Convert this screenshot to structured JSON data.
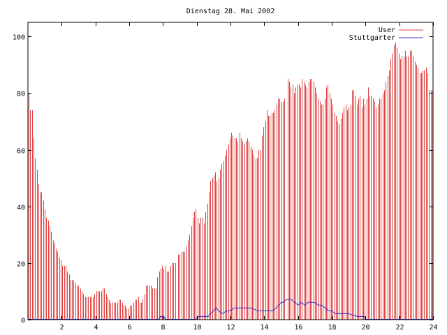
{
  "chart_data": {
    "type": "bar",
    "title": "Dienstag 28. Mai 2002",
    "xlabel": "",
    "ylabel": "",
    "xlim": [
      0,
      24
    ],
    "ylim": [
      0,
      105
    ],
    "xticks": [
      2,
      4,
      6,
      8,
      10,
      12,
      14,
      16,
      18,
      20,
      22,
      24
    ],
    "yticks": [
      0,
      20,
      40,
      60,
      80,
      100
    ],
    "legend_position": "top-right",
    "grid": false,
    "colors": {
      "User": "#e04040",
      "Stuttgarter": "#3030c8",
      "axis": "#000000"
    },
    "bar_interval_hours": 0.0833,
    "series": [
      {
        "name": "User",
        "type": "bar",
        "values": [
          80,
          74,
          74,
          64,
          57,
          53,
          48,
          45,
          45,
          42,
          39,
          36,
          35,
          33,
          31,
          28,
          27,
          25,
          24,
          22,
          21,
          19,
          19,
          19,
          17,
          16,
          14,
          14,
          14,
          13,
          12,
          12,
          11,
          10,
          9,
          8,
          8,
          8,
          8,
          8,
          8,
          9,
          10,
          10,
          10,
          10,
          11,
          11,
          9,
          8,
          7,
          6,
          6,
          6,
          6,
          6,
          7,
          7,
          6,
          5,
          5,
          4,
          4,
          5,
          5,
          6,
          7,
          7,
          8,
          6,
          6,
          7,
          9,
          12,
          12,
          12,
          12,
          11,
          11,
          11,
          15,
          17,
          18,
          19,
          18,
          19,
          17,
          17,
          19,
          20,
          20,
          20,
          0,
          23,
          23,
          24,
          24,
          24,
          26,
          28,
          30,
          33,
          36,
          38,
          39,
          36,
          34,
          36,
          36,
          34,
          38,
          41,
          45,
          49,
          50,
          51,
          52,
          49,
          50,
          53,
          55,
          56,
          58,
          60,
          62,
          64,
          66,
          65,
          64,
          64,
          63,
          66,
          64,
          63,
          62,
          63,
          64,
          63,
          61,
          60,
          58,
          57,
          57,
          60,
          60,
          65,
          68,
          70,
          74,
          72,
          72,
          73,
          73,
          74,
          76,
          78,
          78,
          77,
          77,
          78,
          0,
          85,
          84,
          82,
          83,
          80,
          82,
          83,
          83,
          82,
          85,
          84,
          83,
          82,
          84,
          85,
          85,
          84,
          82,
          80,
          78,
          77,
          76,
          76,
          78,
          82,
          83,
          80,
          78,
          76,
          73,
          72,
          70,
          69,
          71,
          73,
          75,
          76,
          74,
          75,
          76,
          81,
          81,
          79,
          76,
          78,
          79,
          75,
          78,
          76,
          78,
          82,
          79,
          79,
          78,
          77,
          75,
          76,
          78,
          78,
          80,
          81,
          84,
          86,
          88,
          92,
          94,
          97,
          98,
          96,
          94,
          92,
          93,
          93,
          95,
          93,
          93,
          95,
          95,
          93,
          91,
          90,
          89,
          87,
          87,
          88,
          88,
          89,
          87,
          81,
          81,
          81
        ]
      },
      {
        "name": "Stuttgarter",
        "type": "line",
        "x": [
          0,
          7.75,
          7.85,
          8.05,
          8.15,
          9.95,
          10.05,
          10.7,
          10.8,
          11.0,
          11.15,
          11.3,
          11.5,
          11.8,
          12.0,
          12.2,
          12.5,
          12.8,
          13.0,
          13.2,
          13.6,
          14.0,
          14.3,
          14.5,
          14.7,
          15.0,
          15.15,
          15.3,
          15.6,
          15.8,
          16.0,
          16.2,
          16.4,
          16.6,
          16.8,
          17.0,
          17.2,
          17.4,
          17.6,
          17.8,
          18.0,
          18.2,
          18.5,
          19.0,
          19.5,
          19.9,
          20.0,
          24
        ],
        "values": [
          0,
          0,
          1,
          1,
          0,
          0,
          1,
          1,
          2,
          3,
          4,
          3,
          2,
          3,
          3,
          4,
          4,
          4,
          4,
          4,
          3,
          3,
          3,
          3,
          4,
          6,
          6,
          7,
          7,
          6,
          5,
          6,
          5,
          6,
          6,
          6,
          5,
          5,
          4,
          3,
          3,
          2,
          2,
          2,
          1,
          1,
          0,
          0
        ]
      }
    ]
  }
}
